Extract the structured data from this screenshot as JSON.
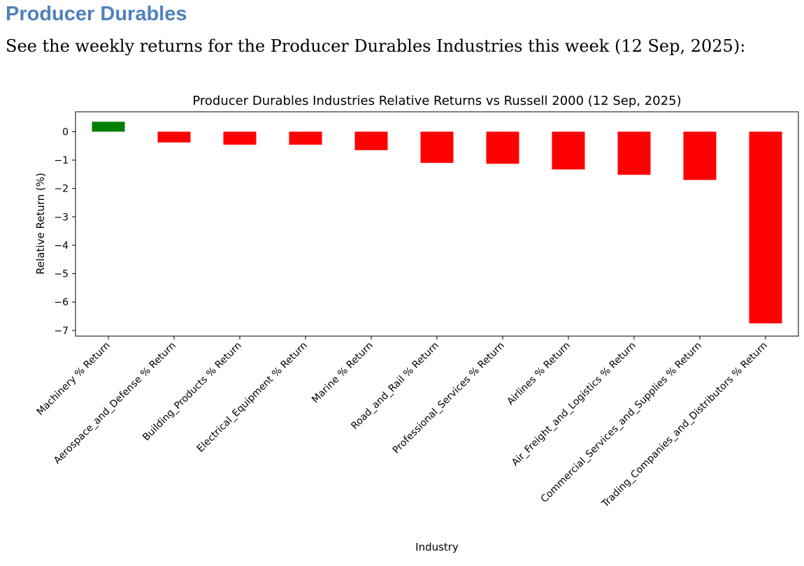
{
  "document": {
    "heading": "Producer Durables",
    "intro": "See the weekly returns for the Producer Durables Industries this week (12 Sep, 2025):"
  },
  "chart_data": {
    "type": "bar",
    "title": "Producer Durables Industries Relative Returns vs Russell 2000 (12 Sep, 2025)",
    "xlabel": "Industry",
    "ylabel": "Relative Return (%)",
    "ylim": [
      -7.2,
      0.7
    ],
    "yticks": [
      0,
      -1,
      -2,
      -3,
      -4,
      -5,
      -6,
      -7
    ],
    "ytick_labels": [
      "0",
      "−1",
      "−2",
      "−3",
      "−4",
      "−5",
      "−6",
      "−7"
    ],
    "grid": false,
    "categories": [
      "Machinery % Return",
      "Aerospace_and_Defense % Return",
      "Building_Products % Return",
      "Electrical_Equipment % Return",
      "Marine % Return",
      "Road_and_Rail % Return",
      "Professional_Services % Return",
      "Airlines % Return",
      "Air_Freight_and_Logistics % Return",
      "Commercial_Services_and_Supplies % Return",
      "Trading_Companies_and_Distributors % Return"
    ],
    "values": [
      0.35,
      -0.38,
      -0.46,
      -0.46,
      -0.65,
      -1.1,
      -1.13,
      -1.33,
      -1.52,
      -1.7,
      -6.75
    ],
    "colors": {
      "positive": "#008000",
      "negative": "#ff0000"
    }
  }
}
